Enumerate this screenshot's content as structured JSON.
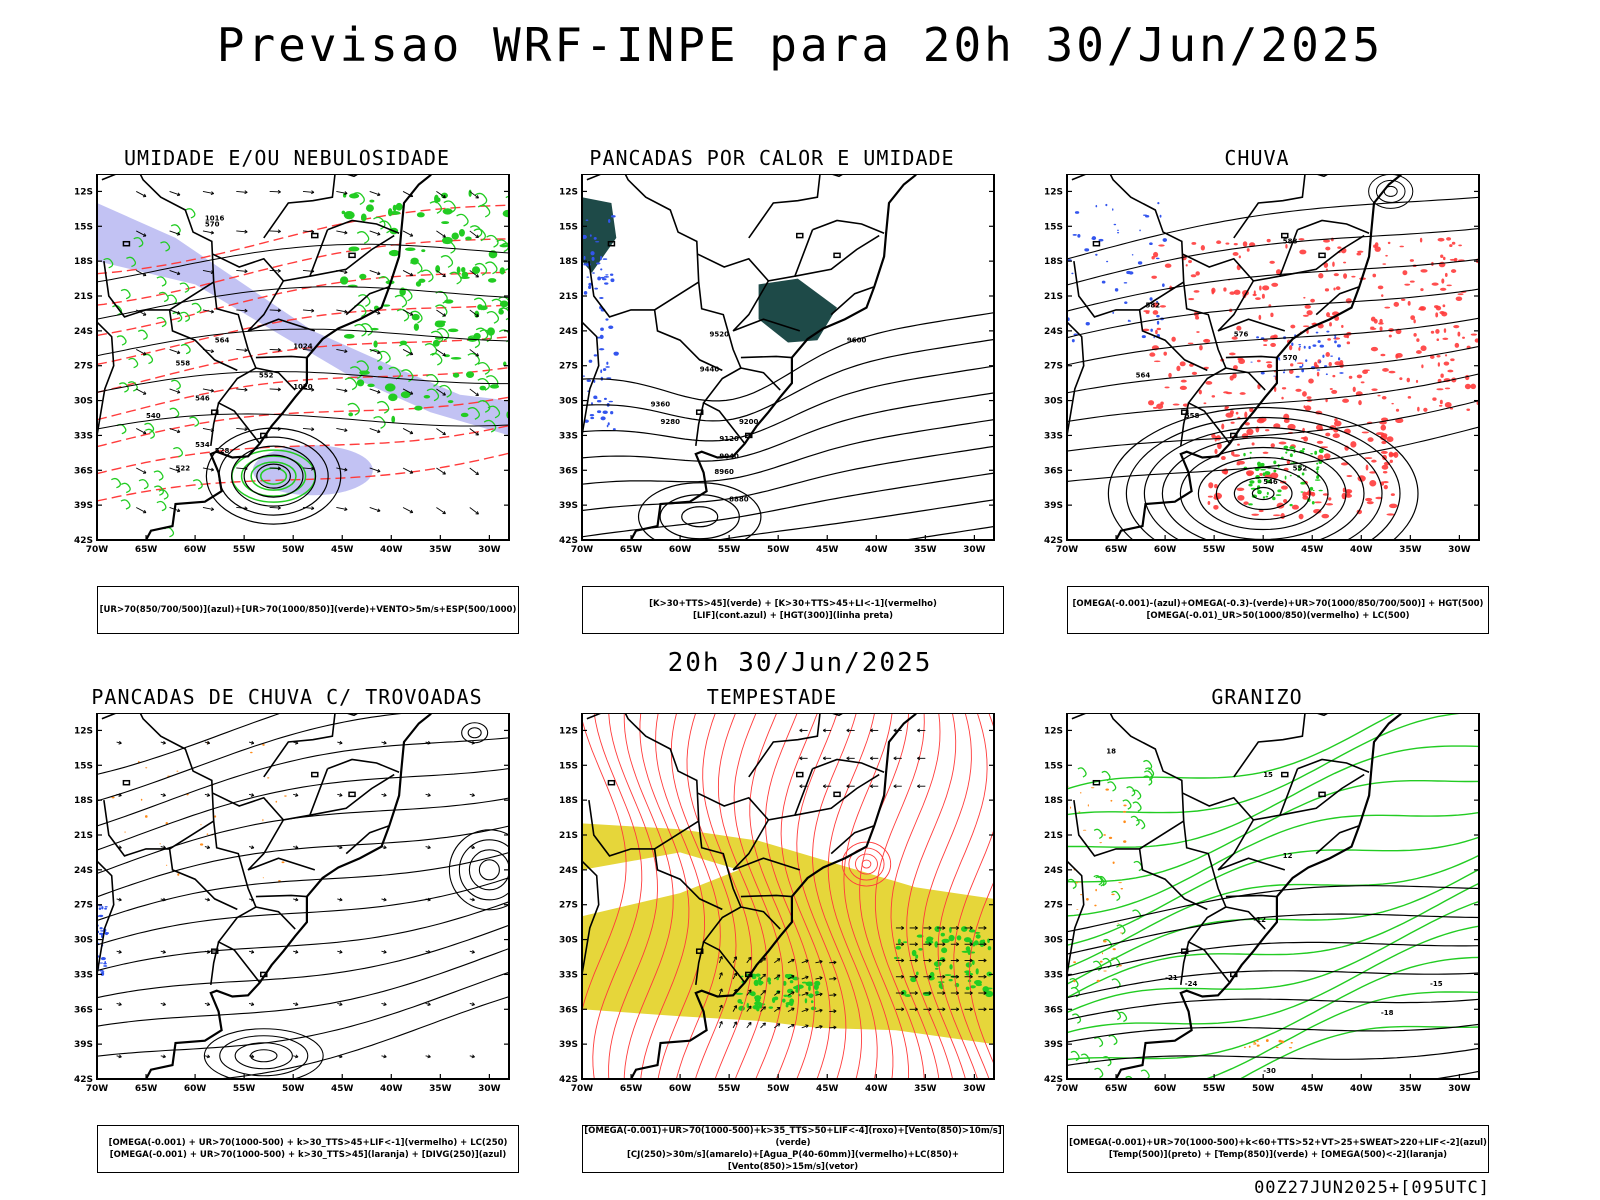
{
  "header": {
    "title": "Previsao WRF-INPE  para 20h 30/Jun/2025"
  },
  "mid_title": "20h 30/Jun/2025",
  "footer": {
    "stamp": "00Z27JUN2025+[095UTC]"
  },
  "axes": {
    "lat_labels": [
      "12S",
      "15S",
      "18S",
      "21S",
      "24S",
      "27S",
      "30S",
      "33S",
      "36S",
      "39S",
      "42S"
    ],
    "lon_labels": [
      "70W",
      "65W",
      "60W",
      "55W",
      "50W",
      "45W",
      "40W",
      "35W",
      "30W"
    ]
  },
  "panels": [
    {
      "id": "umidade",
      "title": "UMIDADE E/OU NEBULOSIDADE",
      "legend": [
        "[UR>70(850/700/500)](azul)+[UR>70(1000/850)](verde)+VENTO>5m/s+ESP(500/1000)"
      ],
      "labels": [
        "1016",
        "1020",
        "1024",
        "570",
        "564",
        "558",
        "552",
        "546",
        "540",
        "534",
        "528",
        "522"
      ]
    },
    {
      "id": "pancadas",
      "title": "PANCADAS POR CALOR E UMIDADE",
      "legend": [
        "[K>30+TTS>45](verde) + [K>30+TTS>45+LI<-1](vermelho)",
        "[LIF](cont.azul) + [HGT(300)](linha preta)"
      ],
      "labels": [
        "9600",
        "9520",
        "9440",
        "9360",
        "9280",
        "9200",
        "9120",
        "9040",
        "8960",
        "8880"
      ]
    },
    {
      "id": "chuva",
      "title": "CHUVA",
      "legend": [
        "[OMEGA(-0.001)-(azul)+OMEGA(-0.3)-(verde)+UR>70(1000/850/700/500)] + HGT(500)",
        "[OMEGA(-0.01)_UR>50(1000/850)(vermelho) + LC(500)"
      ],
      "labels": [
        "588",
        "582",
        "576",
        "570",
        "564",
        "558",
        "552",
        "546"
      ]
    },
    {
      "id": "trovoadas",
      "title": "PANCADAS DE CHUVA C/ TROVOADAS",
      "legend": [
        "[OMEGA(-0.001) + UR>70(1000-500) + k>30_TTS>45+LIF<-1](vermelho) + LC(250)",
        "[OMEGA(-0.001) + UR>70(1000-500) + k>30_TTS>45](laranja) + [DIVG(250)](azul)"
      ],
      "labels": []
    },
    {
      "id": "tempestade",
      "title": "TEMPESTADE",
      "legend": [
        "[OMEGA(-0.001)+UR>70(1000-500)+k>35_TTS>50+LIF<-4](roxo)+[Vento(850)>10m/s](verde)",
        "[CJ(250)>30m/s](amarelo)+[Agua_P(40-60mm)](vermelho)+LC(850)+[Vento(850)>15m/s](vetor)"
      ],
      "labels": []
    },
    {
      "id": "granizo",
      "title": "GRANIZO",
      "legend": [
        "[OMEGA(-0.001)+UR>70(1000-500)+k<60+TTS>52+VT>25+SWEAT>220+LIF<-2](azul)",
        "[Temp(500)](preto) + [Temp(850)](verde) + [OMEGA(500)<-2](laranja)"
      ],
      "labels": [
        "-15",
        "-18",
        "-21",
        "-24",
        "-30",
        "-12",
        "15",
        "18",
        "12"
      ]
    }
  ],
  "colors": {
    "red": "#ff3b3b",
    "green": "#22cc22",
    "blue": "#3355ee",
    "lavender": "#b3b3f0",
    "teal": "#1e4a48",
    "yellow": "#e6d63a",
    "orange": "#ff8c1a"
  }
}
